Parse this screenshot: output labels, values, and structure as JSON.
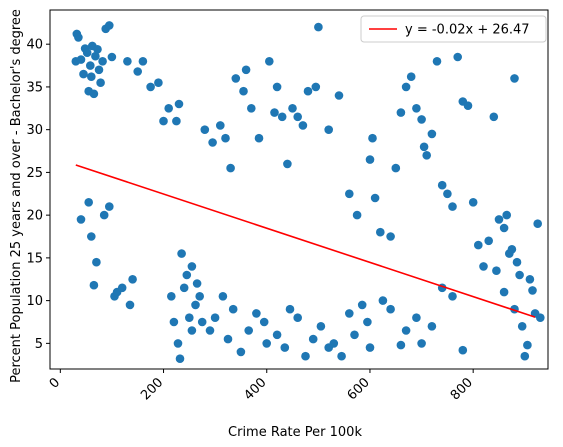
{
  "chart_data": {
    "type": "scatter",
    "title": "",
    "xlabel": "Crime Rate Per 100k",
    "ylabel": "Percent Population 25 years and over - Bachelor's degree",
    "xlim": [
      -20,
      945
    ],
    "ylim": [
      2,
      44
    ],
    "xticks": [
      0,
      200,
      400,
      600,
      800
    ],
    "yticks": [
      5,
      10,
      15,
      20,
      25,
      30,
      35,
      40
    ],
    "grid": false,
    "legend_position": "top-right",
    "point_color": "#1f77b4",
    "line_color": "#ff0000",
    "legend": [
      {
        "label": "y = -0.02x + 26.47",
        "color": "#ff0000"
      }
    ],
    "fit_line": {
      "slope": -0.02,
      "intercept": 26.47,
      "x_range": [
        30,
        920
      ]
    },
    "points": [
      [
        30,
        38
      ],
      [
        32,
        41.2
      ],
      [
        35,
        40.8
      ],
      [
        40,
        38.2
      ],
      [
        45,
        36.5
      ],
      [
        48,
        39.5
      ],
      [
        52,
        39
      ],
      [
        55,
        34.5
      ],
      [
        58,
        37.5
      ],
      [
        60,
        36.2
      ],
      [
        62,
        39.8
      ],
      [
        65,
        34.2
      ],
      [
        68,
        38.6
      ],
      [
        72,
        39.4
      ],
      [
        75,
        37
      ],
      [
        78,
        35.5
      ],
      [
        82,
        38
      ],
      [
        88,
        41.8
      ],
      [
        95,
        42.2
      ],
      [
        100,
        38.5
      ],
      [
        40,
        19.5
      ],
      [
        55,
        21.5
      ],
      [
        60,
        17.5
      ],
      [
        65,
        11.8
      ],
      [
        70,
        14.5
      ],
      [
        85,
        20
      ],
      [
        95,
        21
      ],
      [
        105,
        10.5
      ],
      [
        110,
        11
      ],
      [
        120,
        11.5
      ],
      [
        135,
        9.5
      ],
      [
        140,
        12.5
      ],
      [
        130,
        38
      ],
      [
        150,
        36.8
      ],
      [
        160,
        38
      ],
      [
        175,
        35
      ],
      [
        190,
        35.5
      ],
      [
        200,
        31
      ],
      [
        210,
        32.5
      ],
      [
        225,
        31
      ],
      [
        230,
        33
      ],
      [
        215,
        10.5
      ],
      [
        220,
        7.5
      ],
      [
        228,
        5
      ],
      [
        232,
        3.2
      ],
      [
        240,
        11.5
      ],
      [
        250,
        8
      ],
      [
        255,
        6.5
      ],
      [
        262,
        9.5
      ],
      [
        270,
        10.5
      ],
      [
        280,
        30
      ],
      [
        295,
        28.5
      ],
      [
        310,
        30.5
      ],
      [
        320,
        29
      ],
      [
        330,
        25.5
      ],
      [
        340,
        36
      ],
      [
        355,
        34.5
      ],
      [
        360,
        37
      ],
      [
        370,
        32.5
      ],
      [
        385,
        29
      ],
      [
        405,
        38
      ],
      [
        415,
        32
      ],
      [
        420,
        35
      ],
      [
        430,
        31.5
      ],
      [
        440,
        26
      ],
      [
        450,
        32.5
      ],
      [
        460,
        31.5
      ],
      [
        470,
        30.5
      ],
      [
        480,
        34.5
      ],
      [
        495,
        35
      ],
      [
        500,
        42
      ],
      [
        520,
        30
      ],
      [
        540,
        34
      ],
      [
        560,
        22.5
      ],
      [
        575,
        20
      ],
      [
        600,
        26.5
      ],
      [
        605,
        29
      ],
      [
        610,
        22
      ],
      [
        620,
        18
      ],
      [
        640,
        17.5
      ],
      [
        650,
        25.5
      ],
      [
        660,
        32
      ],
      [
        670,
        35
      ],
      [
        680,
        36.2
      ],
      [
        690,
        32.5
      ],
      [
        700,
        31.2
      ],
      [
        705,
        28
      ],
      [
        710,
        27
      ],
      [
        720,
        29.5
      ],
      [
        730,
        38
      ],
      [
        740,
        23.5
      ],
      [
        750,
        22.5
      ],
      [
        760,
        21
      ],
      [
        770,
        38.5
      ],
      [
        780,
        33.3
      ],
      [
        790,
        32.8
      ],
      [
        800,
        21.5
      ],
      [
        810,
        16.5
      ],
      [
        820,
        14
      ],
      [
        830,
        17
      ],
      [
        840,
        31.5
      ],
      [
        850,
        19.5
      ],
      [
        860,
        18.5
      ],
      [
        865,
        20
      ],
      [
        870,
        15.5
      ],
      [
        875,
        16
      ],
      [
        880,
        36
      ],
      [
        885,
        14.5
      ],
      [
        890,
        13
      ],
      [
        895,
        7
      ],
      [
        900,
        3.5
      ],
      [
        905,
        4.8
      ],
      [
        910,
        12.5
      ],
      [
        915,
        11.2
      ],
      [
        920,
        8.5
      ],
      [
        925,
        19
      ],
      [
        930,
        8
      ],
      [
        880,
        9
      ],
      [
        860,
        11
      ],
      [
        845,
        13.5
      ],
      [
        780,
        4.2
      ],
      [
        760,
        10.5
      ],
      [
        740,
        11.5
      ],
      [
        720,
        7
      ],
      [
        700,
        5
      ],
      [
        690,
        8
      ],
      [
        670,
        6.5
      ],
      [
        660,
        4.8
      ],
      [
        640,
        9
      ],
      [
        625,
        10
      ],
      [
        600,
        4.5
      ],
      [
        595,
        7.5
      ],
      [
        585,
        9.5
      ],
      [
        570,
        6
      ],
      [
        560,
        8.5
      ],
      [
        545,
        3.5
      ],
      [
        530,
        5
      ],
      [
        520,
        4.5
      ],
      [
        505,
        7
      ],
      [
        490,
        5.5
      ],
      [
        475,
        3.5
      ],
      [
        460,
        8
      ],
      [
        445,
        9
      ],
      [
        435,
        4.5
      ],
      [
        420,
        6
      ],
      [
        400,
        5
      ],
      [
        395,
        7.5
      ],
      [
        380,
        8.5
      ],
      [
        365,
        6.5
      ],
      [
        350,
        4
      ],
      [
        335,
        9
      ],
      [
        325,
        5.5
      ],
      [
        315,
        10.5
      ],
      [
        300,
        8
      ],
      [
        290,
        6.5
      ],
      [
        275,
        7.5
      ],
      [
        265,
        12
      ],
      [
        255,
        14
      ],
      [
        245,
        13
      ],
      [
        235,
        15.5
      ]
    ]
  }
}
